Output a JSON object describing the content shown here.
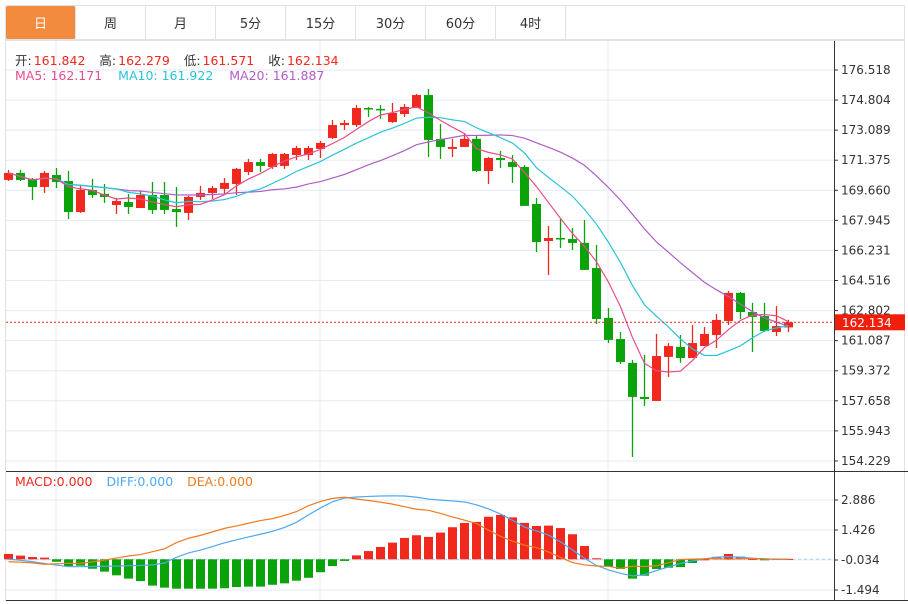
{
  "tabs": [
    "日",
    "周",
    "月",
    "5分",
    "15分",
    "30分",
    "60分",
    "4时"
  ],
  "active_tab": 0,
  "ohlc_info": {
    "open_label": "开:",
    "open": "161.842",
    "high_label": "高:",
    "high": "162.279",
    "low_label": "低:",
    "low": "161.571",
    "close_label": "收:",
    "close": "162.134"
  },
  "ma_info": {
    "ma5": "MA5: 162.171",
    "ma10": "MA10: 161.922",
    "ma20": "MA20: 161.887"
  },
  "macd_info": {
    "macd": "MACD:0.000",
    "diff": "DIFF:0.000",
    "dea": "DEA:0.000"
  },
  "colors": {
    "up": "#f0281e",
    "down": "#0aa30a",
    "ma5": "#e94d8a",
    "ma10": "#29c3d9",
    "ma20": "#b05ec7",
    "diff": "#4ea8f0",
    "dea": "#f07a1e",
    "accent": "#f28b3d"
  },
  "chart_data": {
    "type": "candlestick",
    "price_axis": {
      "ticks": [
        "176.518",
        "174.804",
        "173.089",
        "171.375",
        "169.660",
        "167.945",
        "166.231",
        "164.516",
        "162.802",
        "161.087",
        "159.372",
        "157.658",
        "155.943",
        "154.229"
      ],
      "range": [
        154.229,
        176.518
      ]
    },
    "last_price": "162.134",
    "candles": [
      [
        170.25,
        170.65,
        170.82,
        170.19
      ],
      [
        170.65,
        170.25,
        170.82,
        170.19
      ],
      [
        170.31,
        169.85,
        170.36,
        169.11
      ],
      [
        169.85,
        170.65,
        170.76,
        169.51
      ],
      [
        170.53,
        170.13,
        170.93,
        169.79
      ],
      [
        170.19,
        168.42,
        170.76,
        168.02
      ],
      [
        168.42,
        169.68,
        169.96,
        168.37
      ],
      [
        169.68,
        169.39,
        170.31,
        169.22
      ],
      [
        169.45,
        169.28,
        170.02,
        168.94
      ],
      [
        168.82,
        169.05,
        169.22,
        168.31
      ],
      [
        168.99,
        168.71,
        169.45,
        168.31
      ],
      [
        168.65,
        169.39,
        169.62,
        168.65
      ],
      [
        169.39,
        168.54,
        170.13,
        168.31
      ],
      [
        169.39,
        168.54,
        170.13,
        168.31
      ],
      [
        168.59,
        168.42,
        169.85,
        167.57
      ],
      [
        168.37,
        169.28,
        169.34,
        167.97
      ],
      [
        169.28,
        169.51,
        169.91,
        169.11
      ],
      [
        169.51,
        169.79,
        169.91,
        169.17
      ],
      [
        169.74,
        170.08,
        170.36,
        169.39
      ],
      [
        170.02,
        170.88,
        170.93,
        169.39
      ],
      [
        170.7,
        171.27,
        171.45,
        170.53
      ],
      [
        171.27,
        171.05,
        171.45,
        170.7
      ],
      [
        170.99,
        171.73,
        171.79,
        170.88
      ],
      [
        171.05,
        171.73,
        171.79,
        170.88
      ],
      [
        171.67,
        172.07,
        172.19,
        171.39
      ],
      [
        171.67,
        172.07,
        172.19,
        171.39
      ],
      [
        172.02,
        172.36,
        172.47,
        171.5
      ],
      [
        172.64,
        173.38,
        173.67,
        172.59
      ],
      [
        173.38,
        173.5,
        173.67,
        173.1
      ],
      [
        173.38,
        174.35,
        174.52,
        173.27
      ],
      [
        174.35,
        174.3,
        174.41,
        173.84
      ],
      [
        174.3,
        174.24,
        174.52,
        173.72
      ],
      [
        173.55,
        174.07,
        174.64,
        173.5
      ],
      [
        174.01,
        174.41,
        174.58,
        173.84
      ],
      [
        174.35,
        175.09,
        175.15,
        174.35
      ],
      [
        175.09,
        172.53,
        175.44,
        171.56
      ],
      [
        172.59,
        172.13,
        173.44,
        171.45
      ],
      [
        172.02,
        172.13,
        172.59,
        171.56
      ],
      [
        172.13,
        172.59,
        172.93,
        172.13
      ],
      [
        172.59,
        170.76,
        172.81,
        170.7
      ],
      [
        170.76,
        171.5,
        171.56,
        170.02
      ],
      [
        171.5,
        171.39,
        171.9,
        170.93
      ],
      [
        171.27,
        170.99,
        171.67,
        170.08
      ],
      [
        170.99,
        168.77,
        171.1,
        168.77
      ],
      [
        168.88,
        166.71,
        169.22,
        166.14
      ],
      [
        166.77,
        166.94,
        167.63,
        164.83
      ],
      [
        166.94,
        166.88,
        168.02,
        166.37
      ],
      [
        166.88,
        166.66,
        167.51,
        166.26
      ],
      [
        166.66,
        165.12,
        167.97,
        165.12
      ],
      [
        165.23,
        162.32,
        166.54,
        162.04
      ],
      [
        162.38,
        161.13,
        162.95,
        160.95
      ],
      [
        161.18,
        159.87,
        161.58,
        159.76
      ],
      [
        159.82,
        157.88,
        159.99,
        154.46
      ],
      [
        157.88,
        157.76,
        160.27,
        157.36
      ],
      [
        157.65,
        160.21,
        161.47,
        157.65
      ],
      [
        160.16,
        160.78,
        160.95,
        159.02
      ],
      [
        160.73,
        160.1,
        161.41,
        159.82
      ],
      [
        160.1,
        160.95,
        161.98,
        160.1
      ],
      [
        160.78,
        161.47,
        161.87,
        160.78
      ],
      [
        161.41,
        162.27,
        162.61,
        160.67
      ],
      [
        162.21,
        163.81,
        163.92,
        161.98
      ],
      [
        163.81,
        162.72,
        163.86,
        162.32
      ],
      [
        162.72,
        162.44,
        163.24,
        160.44
      ],
      [
        162.49,
        161.64,
        163.24,
        161.58
      ],
      [
        161.58,
        161.92,
        163.06,
        161.35
      ],
      [
        161.842,
        162.134,
        162.279,
        161.571
      ]
    ],
    "macd_axis": {
      "ticks": [
        "2.886",
        "1.426",
        "-0.034",
        "-1.494"
      ]
    },
    "macd_hist": [
      0.26,
      0.18,
      0.11,
      0.08,
      -0.12,
      -0.33,
      -0.31,
      -0.46,
      -0.6,
      -0.78,
      -0.94,
      -1.06,
      -1.28,
      -1.38,
      -1.43,
      -1.43,
      -1.43,
      -1.43,
      -1.41,
      -1.35,
      -1.33,
      -1.33,
      -1.24,
      -1.17,
      -1.04,
      -0.9,
      -0.63,
      -0.33,
      -0.08,
      0.19,
      0.4,
      0.6,
      0.81,
      1.04,
      1.17,
      1.09,
      1.3,
      1.56,
      1.77,
      1.82,
      2.07,
      2.16,
      2.04,
      1.77,
      1.62,
      1.64,
      1.52,
      1.22,
      0.65,
      0.05,
      -0.36,
      -0.47,
      -0.94,
      -0.8,
      -0.47,
      -0.41,
      -0.38,
      -0.18,
      0.0,
      0.12,
      0.26,
      0.13,
      0.02,
      -0.04,
      0.02,
      0.02
    ],
    "diff": [
      0.01,
      -0.05,
      -0.12,
      -0.2,
      -0.28,
      -0.36,
      -0.36,
      -0.35,
      -0.34,
      -0.33,
      -0.31,
      -0.3,
      -0.27,
      -0.18,
      0.1,
      0.31,
      0.45,
      0.62,
      0.8,
      0.95,
      1.09,
      1.22,
      1.36,
      1.55,
      1.8,
      2.16,
      2.5,
      2.8,
      2.98,
      3.03,
      3.06,
      3.08,
      3.09,
      3.08,
      3.02,
      2.93,
      2.88,
      2.84,
      2.79,
      2.65,
      2.45,
      2.2,
      1.9,
      1.57,
      1.38,
      1.18,
      0.85,
      0.45,
      0.05,
      -0.3,
      -0.52,
      -0.68,
      -0.81,
      -0.75,
      -0.55,
      -0.37,
      -0.2,
      -0.08,
      0.02,
      0.1,
      0.13,
      0.1,
      0.05,
      0.01,
      0.01,
      0.01
    ]
  }
}
